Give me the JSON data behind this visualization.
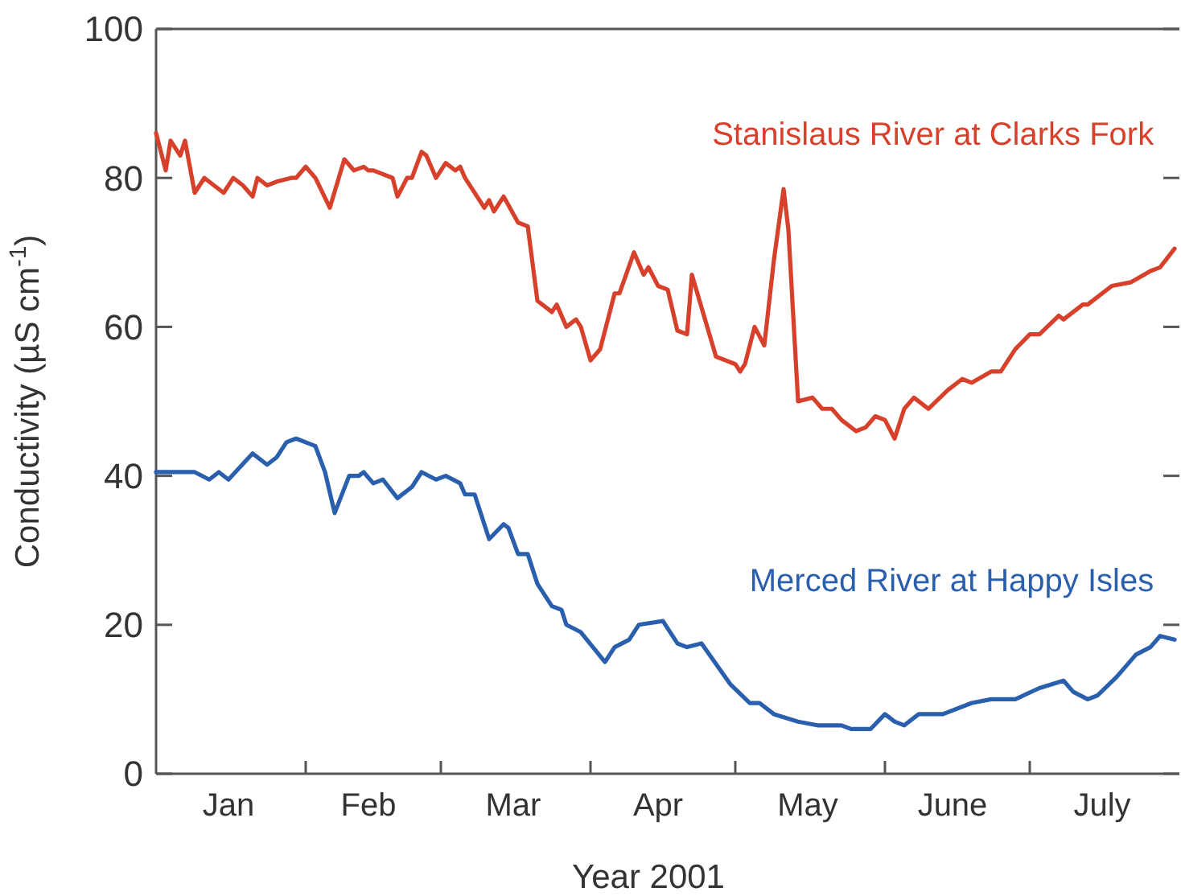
{
  "chart_data": {
    "type": "line",
    "xlabel": "Year 2001",
    "ylabel": "Conductivity (µS cm$^{-1}$)",
    "xlim": [
      "2001-01-01",
      "2001-08-01"
    ],
    "xticks": [
      {
        "value": "2001-02-01",
        "label": null
      },
      {
        "value": "2001-03-01",
        "label": null
      },
      {
        "value": "2001-04-01",
        "label": null
      },
      {
        "value": "2001-05-01",
        "label": null
      },
      {
        "value": "2001-06-01",
        "label": null
      },
      {
        "value": "2001-07-01",
        "label": null
      },
      {
        "value": "2001-01-16",
        "label": "Jan"
      },
      {
        "value": "2001-02-14",
        "label": "Feb"
      },
      {
        "value": "2001-03-16",
        "label": "Mar"
      },
      {
        "value": "2001-04-15",
        "label": "Apr"
      },
      {
        "value": "2001-05-16",
        "label": "May"
      },
      {
        "value": "2001-06-15",
        "label": "June"
      },
      {
        "value": "2001-07-16",
        "label": "July"
      }
    ],
    "ylim": [
      0,
      100
    ],
    "yticks": [
      0,
      20,
      40,
      60,
      80,
      100
    ],
    "series": [
      {
        "name": "Stanislaus River at Clarks Fork",
        "color": "#d7402b",
        "x": [
          "2001-01-01",
          "2001-01-03",
          "2001-01-04",
          "2001-01-06",
          "2001-01-07",
          "2001-01-09",
          "2001-01-11",
          "2001-01-13",
          "2001-01-15",
          "2001-01-17",
          "2001-01-19",
          "2001-01-21",
          "2001-01-22",
          "2001-01-24",
          "2001-01-26",
          "2001-01-29",
          "2001-01-30",
          "2001-02-01",
          "2001-02-03",
          "2001-02-06",
          "2001-02-09",
          "2001-02-11",
          "2001-02-13",
          "2001-02-14",
          "2001-02-15",
          "2001-02-19",
          "2001-02-20",
          "2001-02-22",
          "2001-02-23",
          "2001-02-25",
          "2001-02-26",
          "2001-02-28",
          "2001-03-02",
          "2001-03-04",
          "2001-03-05",
          "2001-03-06",
          "2001-03-10",
          "2001-03-11",
          "2001-03-12",
          "2001-03-14",
          "2001-03-17",
          "2001-03-19",
          "2001-03-21",
          "2001-03-24",
          "2001-03-25",
          "2001-03-27",
          "2001-03-29",
          "2001-03-30",
          "2001-04-01",
          "2001-04-03",
          "2001-04-06",
          "2001-04-07",
          "2001-04-10",
          "2001-04-12",
          "2001-04-13",
          "2001-04-15",
          "2001-04-17",
          "2001-04-19",
          "2001-04-21",
          "2001-04-22",
          "2001-04-27",
          "2001-05-01",
          "2001-05-02",
          "2001-05-03",
          "2001-05-05",
          "2001-05-07",
          "2001-05-09",
          "2001-05-11",
          "2001-05-12",
          "2001-05-14",
          "2001-05-17",
          "2001-05-19",
          "2001-05-21",
          "2001-05-23",
          "2001-05-26",
          "2001-05-28",
          "2001-05-30",
          "2001-06-01",
          "2001-06-03",
          "2001-06-05",
          "2001-06-07",
          "2001-06-10",
          "2001-06-14",
          "2001-06-17",
          "2001-06-19",
          "2001-06-23",
          "2001-06-25",
          "2001-06-28",
          "2001-07-01",
          "2001-07-03",
          "2001-07-07",
          "2001-07-08",
          "2001-07-12",
          "2001-07-13",
          "2001-07-18",
          "2001-07-22",
          "2001-07-26",
          "2001-07-28",
          "2001-07-31"
        ],
        "values": [
          86,
          81,
          85,
          83,
          85,
          78,
          80,
          79,
          78,
          80,
          79,
          77.5,
          80,
          79,
          79.5,
          80,
          80,
          81.5,
          80,
          76,
          82.5,
          81,
          81.5,
          81,
          81,
          80,
          77.5,
          80,
          80,
          83.5,
          83,
          80,
          82,
          81,
          81.5,
          80,
          76,
          77,
          75.5,
          77.5,
          74,
          73.5,
          63.5,
          62,
          63,
          60,
          61,
          60,
          55.5,
          57,
          64.5,
          64.5,
          70,
          67,
          68,
          65.5,
          65,
          59.5,
          59,
          67,
          56,
          55,
          54,
          55,
          60,
          57.5,
          69,
          78.5,
          73,
          50,
          50.5,
          49,
          49,
          47.5,
          46,
          46.5,
          48,
          47.5,
          45,
          49,
          50.5,
          49,
          51.5,
          53,
          52.5,
          54,
          54,
          57,
          59,
          59,
          61.5,
          61,
          63,
          63,
          65.5,
          66,
          67.5,
          68,
          70.5
        ]
      },
      {
        "name": "Merced River at Happy Isles",
        "color": "#2a5fae",
        "x": [
          "2001-01-01",
          "2001-01-09",
          "2001-01-12",
          "2001-01-14",
          "2001-01-16",
          "2001-01-21",
          "2001-01-24",
          "2001-01-26",
          "2001-01-28",
          "2001-01-30",
          "2001-02-01",
          "2001-02-03",
          "2001-02-05",
          "2001-02-07",
          "2001-02-10",
          "2001-02-12",
          "2001-02-13",
          "2001-02-15",
          "2001-02-17",
          "2001-02-20",
          "2001-02-23",
          "2001-02-25",
          "2001-02-28",
          "2001-03-02",
          "2001-03-05",
          "2001-03-06",
          "2001-03-08",
          "2001-03-11",
          "2001-03-14",
          "2001-03-15",
          "2001-03-17",
          "2001-03-19",
          "2001-03-21",
          "2001-03-24",
          "2001-03-26",
          "2001-03-27",
          "2001-03-30",
          "2001-04-04",
          "2001-04-06",
          "2001-04-09",
          "2001-04-11",
          "2001-04-16",
          "2001-04-19",
          "2001-04-21",
          "2001-04-24",
          "2001-04-30",
          "2001-05-04",
          "2001-05-06",
          "2001-05-09",
          "2001-05-14",
          "2001-05-18",
          "2001-05-23",
          "2001-05-25",
          "2001-05-29",
          "2001-06-01",
          "2001-06-03",
          "2001-06-05",
          "2001-06-08",
          "2001-06-13",
          "2001-06-19",
          "2001-06-23",
          "2001-06-28",
          "2001-07-03",
          "2001-07-08",
          "2001-07-10",
          "2001-07-13",
          "2001-07-15",
          "2001-07-19",
          "2001-07-23",
          "2001-07-26",
          "2001-07-28",
          "2001-07-31"
        ],
        "values": [
          40.5,
          40.5,
          39.5,
          40.5,
          39.5,
          43,
          41.5,
          42.5,
          44.5,
          45,
          44.5,
          44,
          40.5,
          35,
          40,
          40,
          40.5,
          39,
          39.5,
          37,
          38.5,
          40.5,
          39.5,
          40,
          39,
          37.5,
          37.5,
          31.5,
          33.5,
          33,
          29.5,
          29.5,
          25.5,
          22.5,
          22,
          20,
          19,
          15,
          17,
          18,
          20,
          20.5,
          17.5,
          17,
          17.5,
          12,
          9.5,
          9.5,
          8,
          7,
          6.5,
          6.5,
          6,
          6,
          8,
          7,
          6.5,
          8,
          8,
          9.5,
          10,
          10,
          11.5,
          12.5,
          11,
          10,
          10.5,
          13,
          16,
          17,
          18.5,
          18
        ]
      }
    ]
  }
}
